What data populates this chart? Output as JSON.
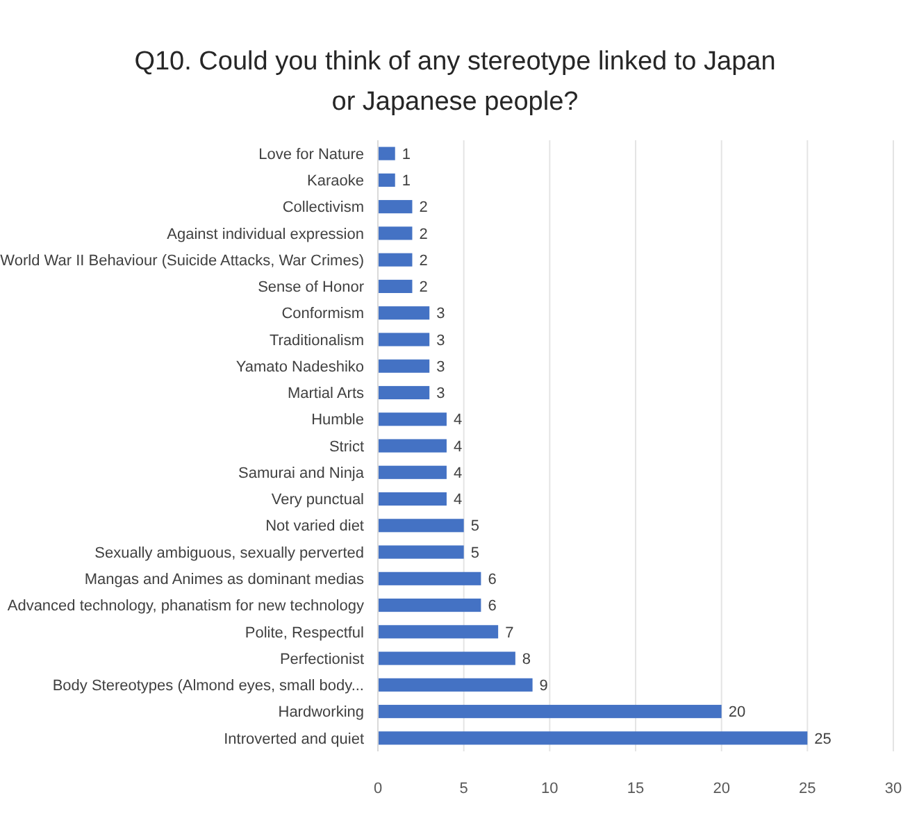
{
  "chart_data": {
    "type": "bar",
    "orientation": "horizontal",
    "title": "Q10. Could you think of any stereotype linked to Japan or Japanese people?",
    "categories": [
      "Love for Nature",
      "Karaoke",
      "Collectivism",
      "Against individual expression",
      "World War II Behaviour (Suicide Attacks, War Crimes)",
      "Sense of Honor",
      "Conformism",
      "Traditionalism",
      "Yamato Nadeshiko",
      "Martial Arts",
      "Humble",
      "Strict",
      "Samurai and Ninja",
      "Very punctual",
      "Not varied diet",
      "Sexually ambiguous, sexually perverted",
      "Mangas and Animes as dominant medias",
      "Advanced technology, phanatism for new technology",
      "Polite, Respectful",
      "Perfectionist",
      "Body Stereotypes (Almond eyes, small body...",
      "Hardworking",
      "Introverted and quiet"
    ],
    "values": [
      1,
      1,
      2,
      2,
      2,
      2,
      3,
      3,
      3,
      3,
      4,
      4,
      4,
      4,
      5,
      5,
      6,
      6,
      7,
      8,
      9,
      20,
      25
    ],
    "color": "#4472c4",
    "xlim": [
      0,
      30
    ],
    "xticks": [
      0,
      5,
      10,
      15,
      20,
      25,
      30
    ],
    "grid": "x",
    "data_labels": true
  }
}
